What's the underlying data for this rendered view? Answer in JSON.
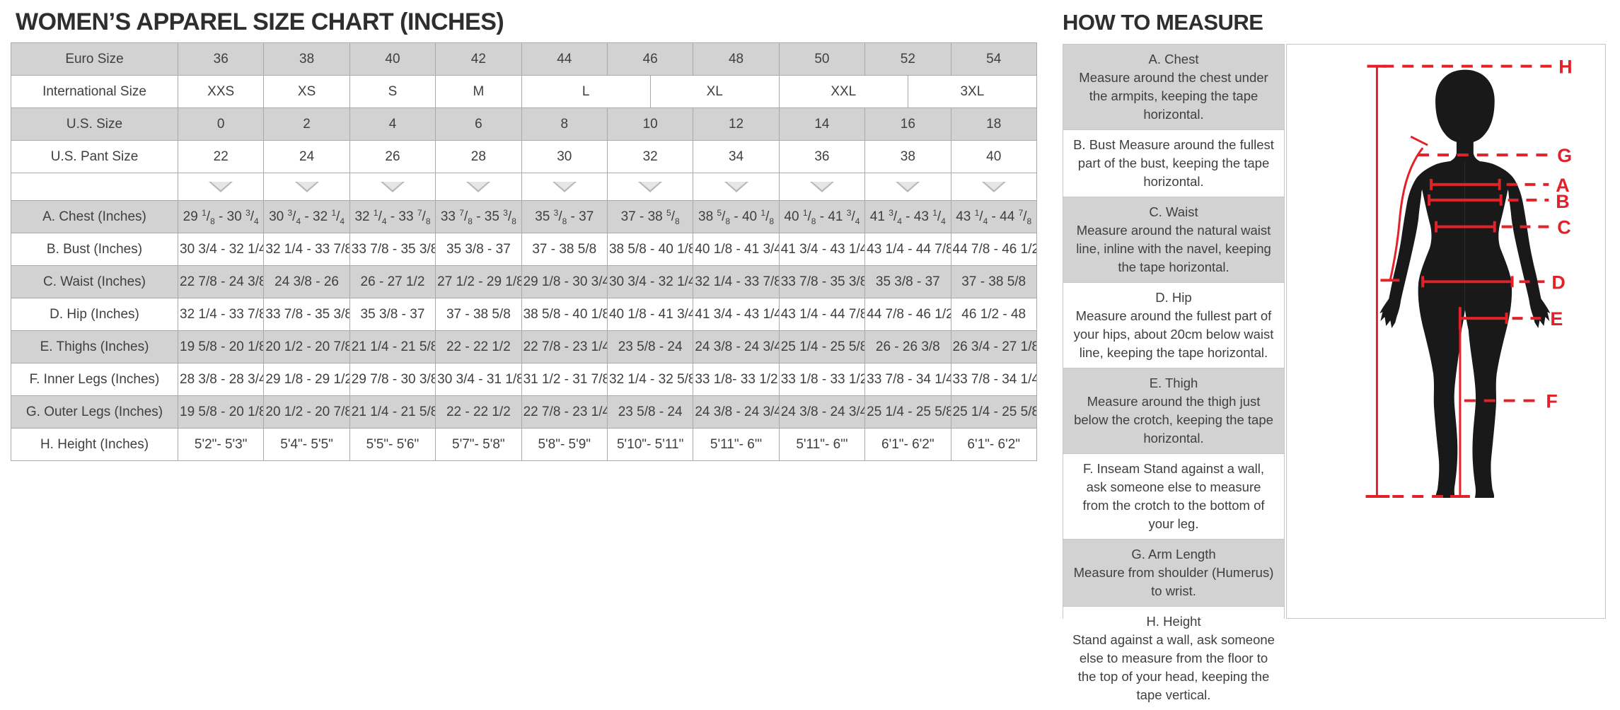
{
  "colors": {
    "accent_red": "#E32128",
    "header_gray": "#D2D2D2",
    "grid_border": "#A9A9A9",
    "text": "#3F3F3F"
  },
  "size_chart": {
    "title": "WOMEN’S APPAREL SIZE CHART (INCHES)",
    "header_rows": [
      {
        "name": "euro-size",
        "label": "Euro Size",
        "shaded": true,
        "cells": [
          {
            "text": "36",
            "span": 2
          },
          {
            "text": "38",
            "span": 2
          },
          {
            "text": "40",
            "span": 2
          },
          {
            "text": "42",
            "span": 2
          },
          {
            "text": "44",
            "span": 2
          },
          {
            "text": "46",
            "span": 2
          },
          {
            "text": "48",
            "span": 2
          },
          {
            "text": "50",
            "span": 2
          },
          {
            "text": "52",
            "span": 2
          },
          {
            "text": "54",
            "span": 2
          }
        ]
      },
      {
        "name": "international-size",
        "label": "International Size",
        "shaded": false,
        "cells": [
          {
            "text": "XXS",
            "span": 2
          },
          {
            "text": "XS",
            "span": 2
          },
          {
            "text": "S",
            "span": 2
          },
          {
            "text": "M",
            "span": 2
          },
          {
            "text": "L",
            "span": 3
          },
          {
            "text": "XL",
            "span": 3
          },
          {
            "text": "XXL",
            "span": 3
          },
          {
            "text": "3XL",
            "span": 3
          }
        ]
      },
      {
        "name": "us-size",
        "label": "U.S. Size",
        "shaded": true,
        "cells": [
          {
            "text": "0",
            "span": 2
          },
          {
            "text": "2",
            "span": 2
          },
          {
            "text": "4",
            "span": 2
          },
          {
            "text": "6",
            "span": 2
          },
          {
            "text": "8",
            "span": 2
          },
          {
            "text": "10",
            "span": 2
          },
          {
            "text": "12",
            "span": 2
          },
          {
            "text": "14",
            "span": 2
          },
          {
            "text": "16",
            "span": 2
          },
          {
            "text": "18",
            "span": 2
          }
        ]
      },
      {
        "name": "us-pant-size",
        "label": "U.S. Pant Size",
        "shaded": false,
        "cells": [
          {
            "text": "22",
            "span": 2
          },
          {
            "text": "24",
            "span": 2
          },
          {
            "text": "26",
            "span": 2
          },
          {
            "text": "28",
            "span": 2
          },
          {
            "text": "30",
            "span": 2
          },
          {
            "text": "32",
            "span": 2
          },
          {
            "text": "34",
            "span": 2
          },
          {
            "text": "36",
            "span": 2
          },
          {
            "text": "38",
            "span": 2
          },
          {
            "text": "40",
            "span": 2
          }
        ]
      }
    ],
    "arrow_row": {
      "label": "",
      "arrow_count": 10,
      "icon": "triangle-down"
    },
    "measure_rows": [
      {
        "name": "chest",
        "label": "A. Chest (Inches)",
        "shaded": true,
        "fractions": true,
        "values": [
          "29 1/8 - 30 3/4",
          "30 3/4 - 32 1/4",
          "32 1/4 - 33 7/8",
          "33 7/8 - 35 3/8",
          "35 3/8 - 37",
          "37 - 38 5/8",
          "38 5/8 - 40 1/8",
          "40 1/8 - 41 3/4",
          "41 3/4 - 43 1/4",
          "43 1/4 - 44 7/8"
        ]
      },
      {
        "name": "bust",
        "label": "B. Bust (Inches)",
        "shaded": false,
        "fractions": false,
        "values": [
          "30 3/4 - 32 1/4",
          "32 1/4 - 33 7/8",
          "33 7/8 - 35 3/8",
          "35 3/8 - 37",
          "37 - 38 5/8",
          "38 5/8 - 40 1/8",
          "40 1/8 - 41 3/4",
          "41 3/4 - 43 1/4",
          "43 1/4 - 44 7/8",
          "44 7/8 - 46 1/2"
        ]
      },
      {
        "name": "waist",
        "label": "C. Waist (Inches)",
        "shaded": true,
        "fractions": false,
        "values": [
          "22 7/8 - 24 3/8",
          "24 3/8 - 26",
          "26 - 27 1/2",
          "27 1/2 - 29 1/8",
          "29 1/8 - 30 3/4",
          "30 3/4 - 32 1/4",
          "32 1/4 - 33 7/8",
          "33 7/8 - 35 3/8",
          "35 3/8 - 37",
          "37 - 38 5/8"
        ]
      },
      {
        "name": "hip",
        "label": "D. Hip (Inches)",
        "shaded": false,
        "fractions": false,
        "values": [
          "32 1/4 - 33 7/8",
          "33 7/8 - 35 3/8",
          "35 3/8 - 37",
          "37 - 38 5/8",
          "38 5/8 - 40 1/8",
          "40 1/8 - 41 3/4",
          "41 3/4 - 43 1/4",
          "43 1/4 - 44 7/8",
          "44 7/8 - 46 1/2",
          "46 1/2 - 48"
        ]
      },
      {
        "name": "thighs",
        "label": "E. Thighs (Inches)",
        "shaded": true,
        "fractions": false,
        "values": [
          "19 5/8 - 20 1/8",
          "20 1/2 - 20 7/8",
          "21 1/4 - 21 5/8",
          "22 - 22 1/2",
          "22 7/8 - 23 1/4",
          "23 5/8 - 24",
          "24 3/8 - 24 3/4",
          "25 1/4 - 25 5/8",
          "26 - 26 3/8",
          "26 3/4 - 27 1/8"
        ]
      },
      {
        "name": "inner-legs",
        "label": "F. Inner Legs (Inches)",
        "shaded": false,
        "fractions": false,
        "values": [
          "28 3/8 - 28 3/4",
          "29 1/8 - 29 1/2",
          "29 7/8 - 30 3/8",
          "30 3/4 - 31 1/8",
          "31 1/2 - 31 7/8",
          "32 1/4 - 32 5/8",
          "33 1/8- 33 1/2",
          "33 1/8 - 33 1/2",
          "33 7/8 - 34 1/4",
          "33 7/8 - 34 1/4"
        ]
      },
      {
        "name": "outer-legs",
        "label": "G. Outer Legs (Inches)",
        "shaded": true,
        "fractions": false,
        "values": [
          "19 5/8 - 20 1/8",
          "20 1/2 - 20 7/8",
          "21 1/4 - 21 5/8",
          "22 - 22 1/2",
          "22 7/8 - 23 1/4",
          "23 5/8 - 24",
          "24 3/8 - 24 3/4",
          "24 3/8 - 24 3/4",
          "25 1/4 - 25 5/8",
          "25 1/4 - 25 5/8"
        ]
      },
      {
        "name": "height",
        "label": "H. Height (Inches)",
        "shaded": false,
        "fractions": false,
        "values": [
          "5'2\"- 5'3\"",
          "5'4\"- 5'5\"",
          "5'5\"- 5'6\"",
          "5'7\"- 5'8\"",
          "5'8\"- 5'9\"",
          "5'10\"- 5'11\"",
          "5'11\"- 6'\"",
          "5'11\"- 6'\"",
          "6'1\"- 6'2\"",
          "6'1\"- 6'2\""
        ]
      }
    ]
  },
  "how_to_measure": {
    "title": "HOW TO MEASURE",
    "sections": [
      {
        "name": "chest",
        "title": "A. Chest",
        "inline": false,
        "shaded": true,
        "text": "Measure around the chest under the armpits, keeping the tape horizontal."
      },
      {
        "name": "bust",
        "title": "B. Bust",
        "inline": true,
        "shaded": false,
        "text": "Measure around the fullest part of the bust, keeping the tape horizontal."
      },
      {
        "name": "waist",
        "title": "C. Waist",
        "inline": false,
        "shaded": true,
        "text": "Measure around the natural waist line, inline with the navel, keeping the tape horizontal."
      },
      {
        "name": "hip",
        "title": "D. Hip",
        "inline": false,
        "shaded": false,
        "text": "Measure around the fullest part of your hips, about 20cm below waist line, keeping the tape horizontal."
      },
      {
        "name": "thigh",
        "title": "E. Thigh",
        "inline": false,
        "shaded": true,
        "text": "Measure around the thigh just below the crotch, keeping the tape horizontal."
      },
      {
        "name": "inseam",
        "title": "F. Inseam",
        "inline": true,
        "shaded": false,
        "text": "Stand against a wall, ask someone else to measure from the crotch to the bottom of your leg."
      },
      {
        "name": "arm-length",
        "title": "G. Arm Length",
        "inline": false,
        "shaded": true,
        "text": "Measure from shoulder (Humerus) to wrist."
      },
      {
        "name": "height",
        "title": "H. Height",
        "inline": false,
        "shaded": false,
        "text": "Stand against a wall, ask someone else to measure from the floor to the top of your head, keeping the tape vertical."
      }
    ]
  },
  "figure": {
    "labels": {
      "h": "H",
      "g": "G",
      "a": "A",
      "b": "B",
      "c": "C",
      "d": "D",
      "e": "E",
      "f": "F"
    }
  }
}
